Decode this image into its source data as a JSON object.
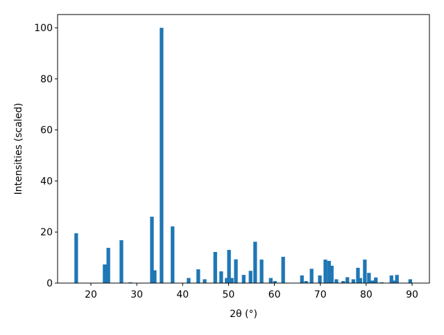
{
  "chart_data": {
    "type": "bar",
    "xlabel": "2θ (°)",
    "ylabel": "Intensities (scaled)",
    "color": "#1f77b4",
    "x": [
      16.8,
      23.0,
      23.8,
      26.65,
      28.6,
      33.3,
      33.9,
      35.4,
      37.8,
      41.3,
      43.4,
      44.8,
      47.1,
      48.4,
      49.6,
      50.1,
      50.7,
      51.6,
      53.3,
      54.8,
      55.8,
      57.2,
      59.2,
      60.1,
      61.9,
      66.0,
      66.9,
      68.1,
      69.9,
      71.1,
      71.9,
      72.5,
      73.5,
      75.0,
      75.9,
      77.2,
      78.2,
      78.7,
      79.7,
      80.6,
      81.4,
      82.1,
      83.4,
      85.5,
      86.1,
      86.7,
      89.6
    ],
    "values": [
      19.5,
      7.3,
      13.8,
      16.8,
      0.3,
      26,
      5,
      100,
      22.2,
      2,
      5.4,
      1.5,
      12.2,
      4.6,
      2,
      13,
      2,
      9.3,
      3.2,
      4.8,
      16.2,
      9.2,
      2,
      0.8,
      10.3,
      3,
      0.8,
      5.6,
      3,
      9.2,
      8.7,
      6.8,
      1.5,
      0.8,
      2.3,
      1.5,
      6,
      2,
      9.2,
      4,
      1,
      2.2,
      0.3,
      3,
      1,
      3.2,
      1.5
    ],
    "xlim": [
      12.74,
      93.78
    ],
    "ylim": [
      0,
      105.2
    ],
    "xticks": [
      20,
      30,
      40,
      50,
      60,
      70,
      80,
      90
    ],
    "yticks": [
      0,
      20,
      40,
      60,
      80,
      100
    ]
  }
}
